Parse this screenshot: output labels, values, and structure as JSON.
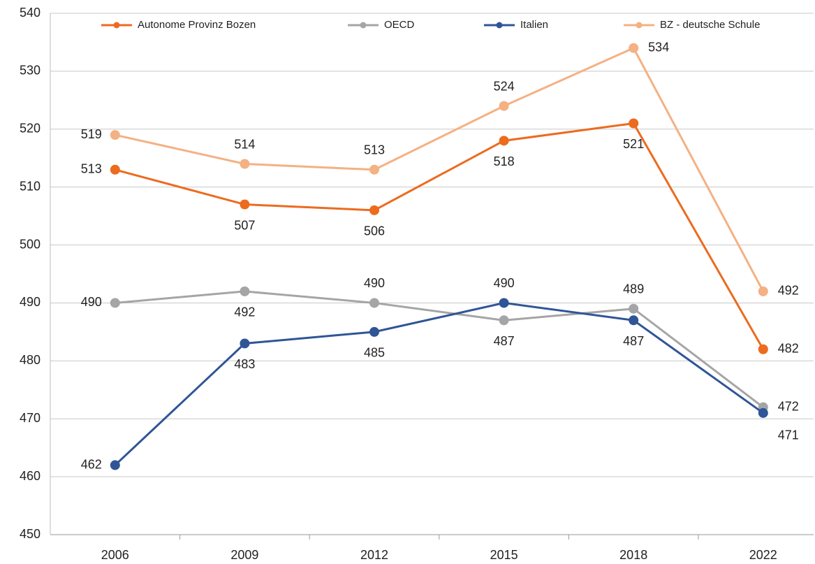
{
  "chart_data": {
    "type": "line",
    "categories": [
      "2006",
      "2009",
      "2012",
      "2015",
      "2018",
      "2022"
    ],
    "series": [
      {
        "name": "Autonome Provinz Bozen",
        "color": "#ec6b1f",
        "values": [
          513,
          507,
          506,
          518,
          521,
          482
        ]
      },
      {
        "name": "OECD",
        "color": "#a5a5a5",
        "values": [
          490,
          492,
          490,
          487,
          489,
          472
        ]
      },
      {
        "name": "Italien",
        "color": "#2f5597",
        "values": [
          462,
          483,
          485,
          490,
          487,
          471
        ]
      },
      {
        "name": "BZ - deutsche Schule",
        "color": "#f4b183",
        "values": [
          519,
          514,
          513,
          524,
          534,
          492
        ]
      }
    ],
    "ylim": [
      450,
      540
    ],
    "yticks": [
      450,
      460,
      470,
      480,
      490,
      500,
      510,
      520,
      530,
      540
    ],
    "grid": true,
    "legend": "top"
  }
}
